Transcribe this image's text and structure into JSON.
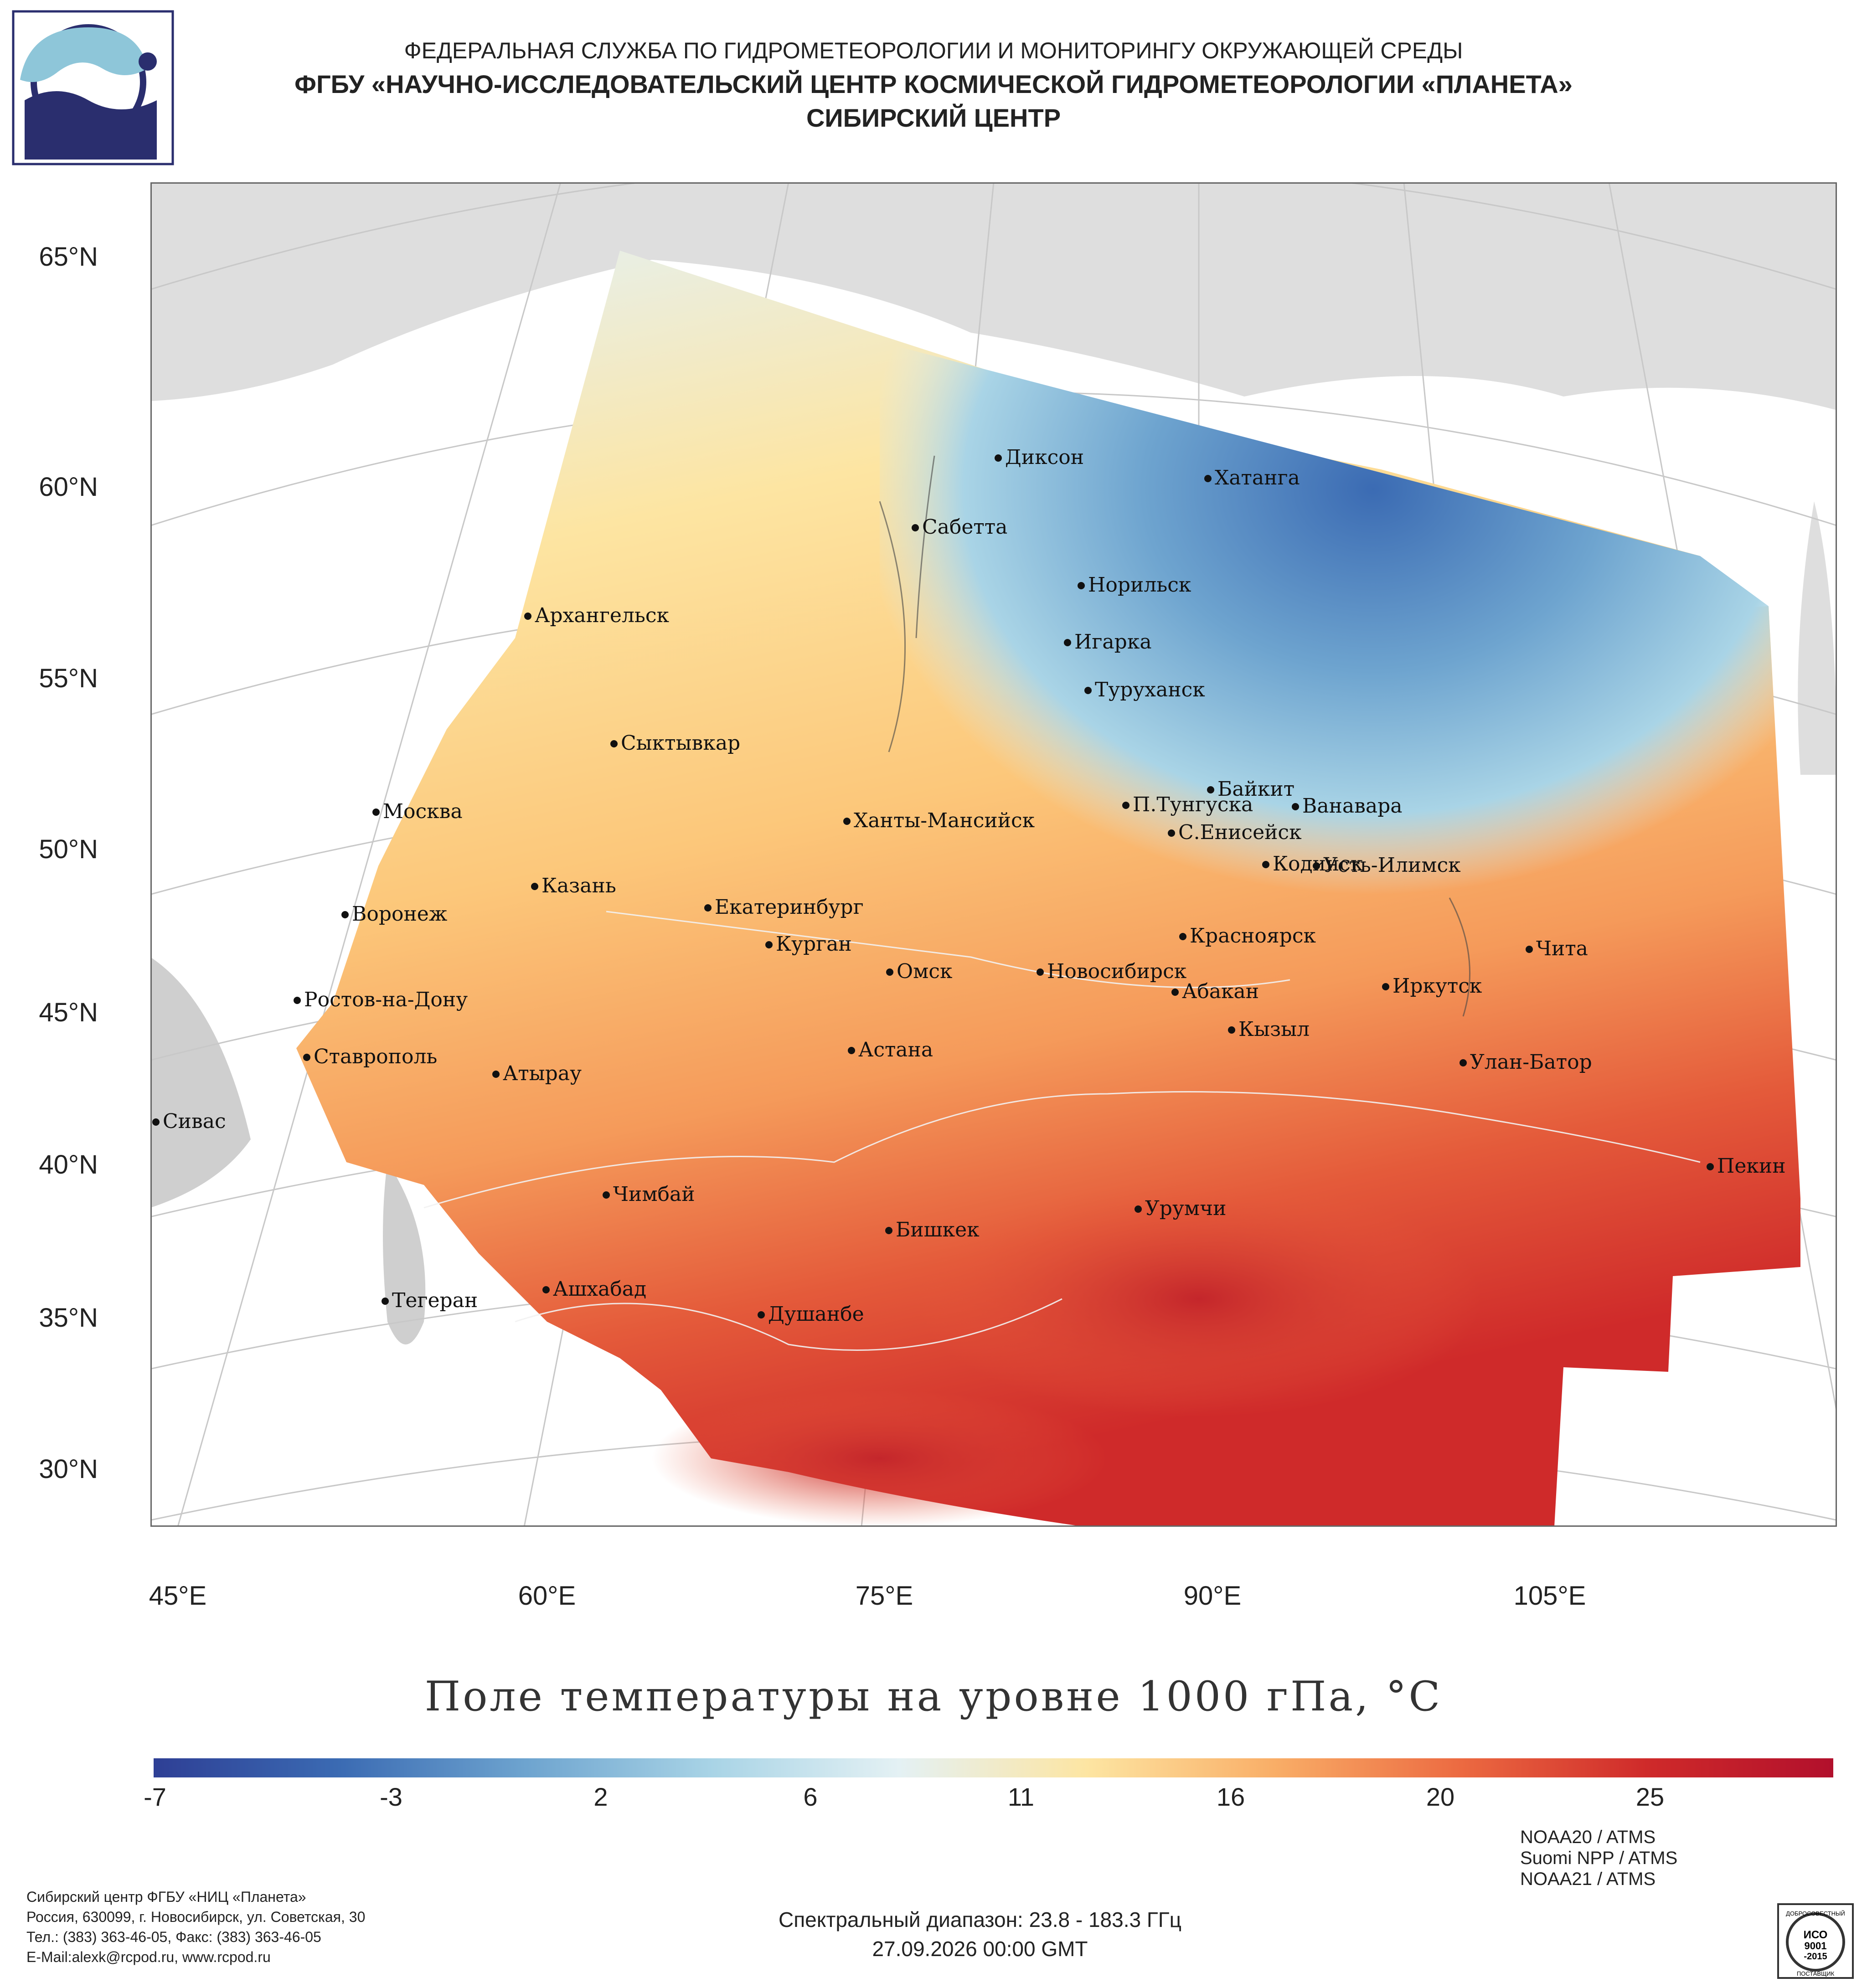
{
  "header": {
    "line1": "ФЕДЕРАЛЬНАЯ СЛУЖБА ПО ГИДРОМЕТЕОРОЛОГИИ И МОНИТОРИНГУ ОКРУЖАЮЩЕЙ СРЕДЫ",
    "line2": "ФГБУ «НАУЧНО-ИССЛЕДОВАТЕЛЬСКИЙ ЦЕНТР КОСМИЧЕСКОЙ ГИДРОМЕТЕОРОЛОГИИ «ПЛАНЕТА»",
    "line3": "СИБИРСКИЙ ЦЕНТР"
  },
  "map": {
    "lat_labels": [
      "65°N",
      "60°N",
      "55°N",
      "50°N",
      "45°N",
      "40°N",
      "35°N",
      "30°N"
    ],
    "lon_labels": [
      "45°E",
      "60°E",
      "75°E",
      "90°E",
      "105°E"
    ],
    "cities": [
      {
        "name": "Диксон"
      },
      {
        "name": "Хатанга"
      },
      {
        "name": "Сабетта"
      },
      {
        "name": "Норильск"
      },
      {
        "name": "Архангельск"
      },
      {
        "name": "Игарка"
      },
      {
        "name": "Туруханск"
      },
      {
        "name": "Сыктывкар"
      },
      {
        "name": "Байкит"
      },
      {
        "name": "П.Тунгуска"
      },
      {
        "name": "Ванавара"
      },
      {
        "name": "Москва"
      },
      {
        "name": "Ханты-Мансийск"
      },
      {
        "name": "С.Енисейск"
      },
      {
        "name": "Кодинск"
      },
      {
        "name": "Усть-Илимск"
      },
      {
        "name": "Казань"
      },
      {
        "name": "Воронеж"
      },
      {
        "name": "Екатеринбург"
      },
      {
        "name": "Красноярск"
      },
      {
        "name": "Курган"
      },
      {
        "name": "Чита"
      },
      {
        "name": "Омск"
      },
      {
        "name": "Новосибирск"
      },
      {
        "name": "Иркутск"
      },
      {
        "name": "Ростов-на-Дону"
      },
      {
        "name": "Абакан"
      },
      {
        "name": "Кызыл"
      },
      {
        "name": "Ставрополь"
      },
      {
        "name": "Астана"
      },
      {
        "name": "Улан-Батор"
      },
      {
        "name": "Атырау"
      },
      {
        "name": "Сивас"
      },
      {
        "name": "Пекин"
      },
      {
        "name": "Чимбай"
      },
      {
        "name": "Урумчи"
      },
      {
        "name": "Бишкек"
      },
      {
        "name": "Ашхабад"
      },
      {
        "name": "Тегеран"
      },
      {
        "name": "Душанбе"
      }
    ]
  },
  "title": "Поле температуры на уровне 1000 гПа, °C",
  "colorbar": {
    "min": -9,
    "max": 29,
    "labels": [
      "-7",
      "-3",
      "2",
      "6",
      "11",
      "16",
      "20",
      "25"
    ],
    "colors": [
      "#2e3f95",
      "#3b6bb3",
      "#6ea4cf",
      "#a9d4e6",
      "#e4f1f4",
      "#fde5a2",
      "#f9ae67",
      "#ec6a41",
      "#cf2a2a",
      "#b2102c"
    ]
  },
  "footer": {
    "left": [
      "Сибирский центр ФГБУ «НИЦ «Планета»",
      "Россия, 630099, г. Новосибирск, ул. Советская, 30",
      "Тел.: (383) 363-46-05, Факс: (383) 363-46-05",
      "E-Mail:alexk@rcpod.ru, www.rcpod.ru"
    ],
    "spectral": "Спектральный диапазон: 23.8 - 183.3 ГГц",
    "datetime": "27.09.2026 00:00 GMT",
    "instruments": [
      "NOAA20 / ATMS",
      "Suomi NPP / ATMS",
      "NOAA21 / ATMS"
    ],
    "iso_badge": [
      "ДОБРОСОВЕСТНЫЙ",
      "ИСО",
      "9001",
      "-2015",
      "ПОСТАВЩИК"
    ]
  }
}
